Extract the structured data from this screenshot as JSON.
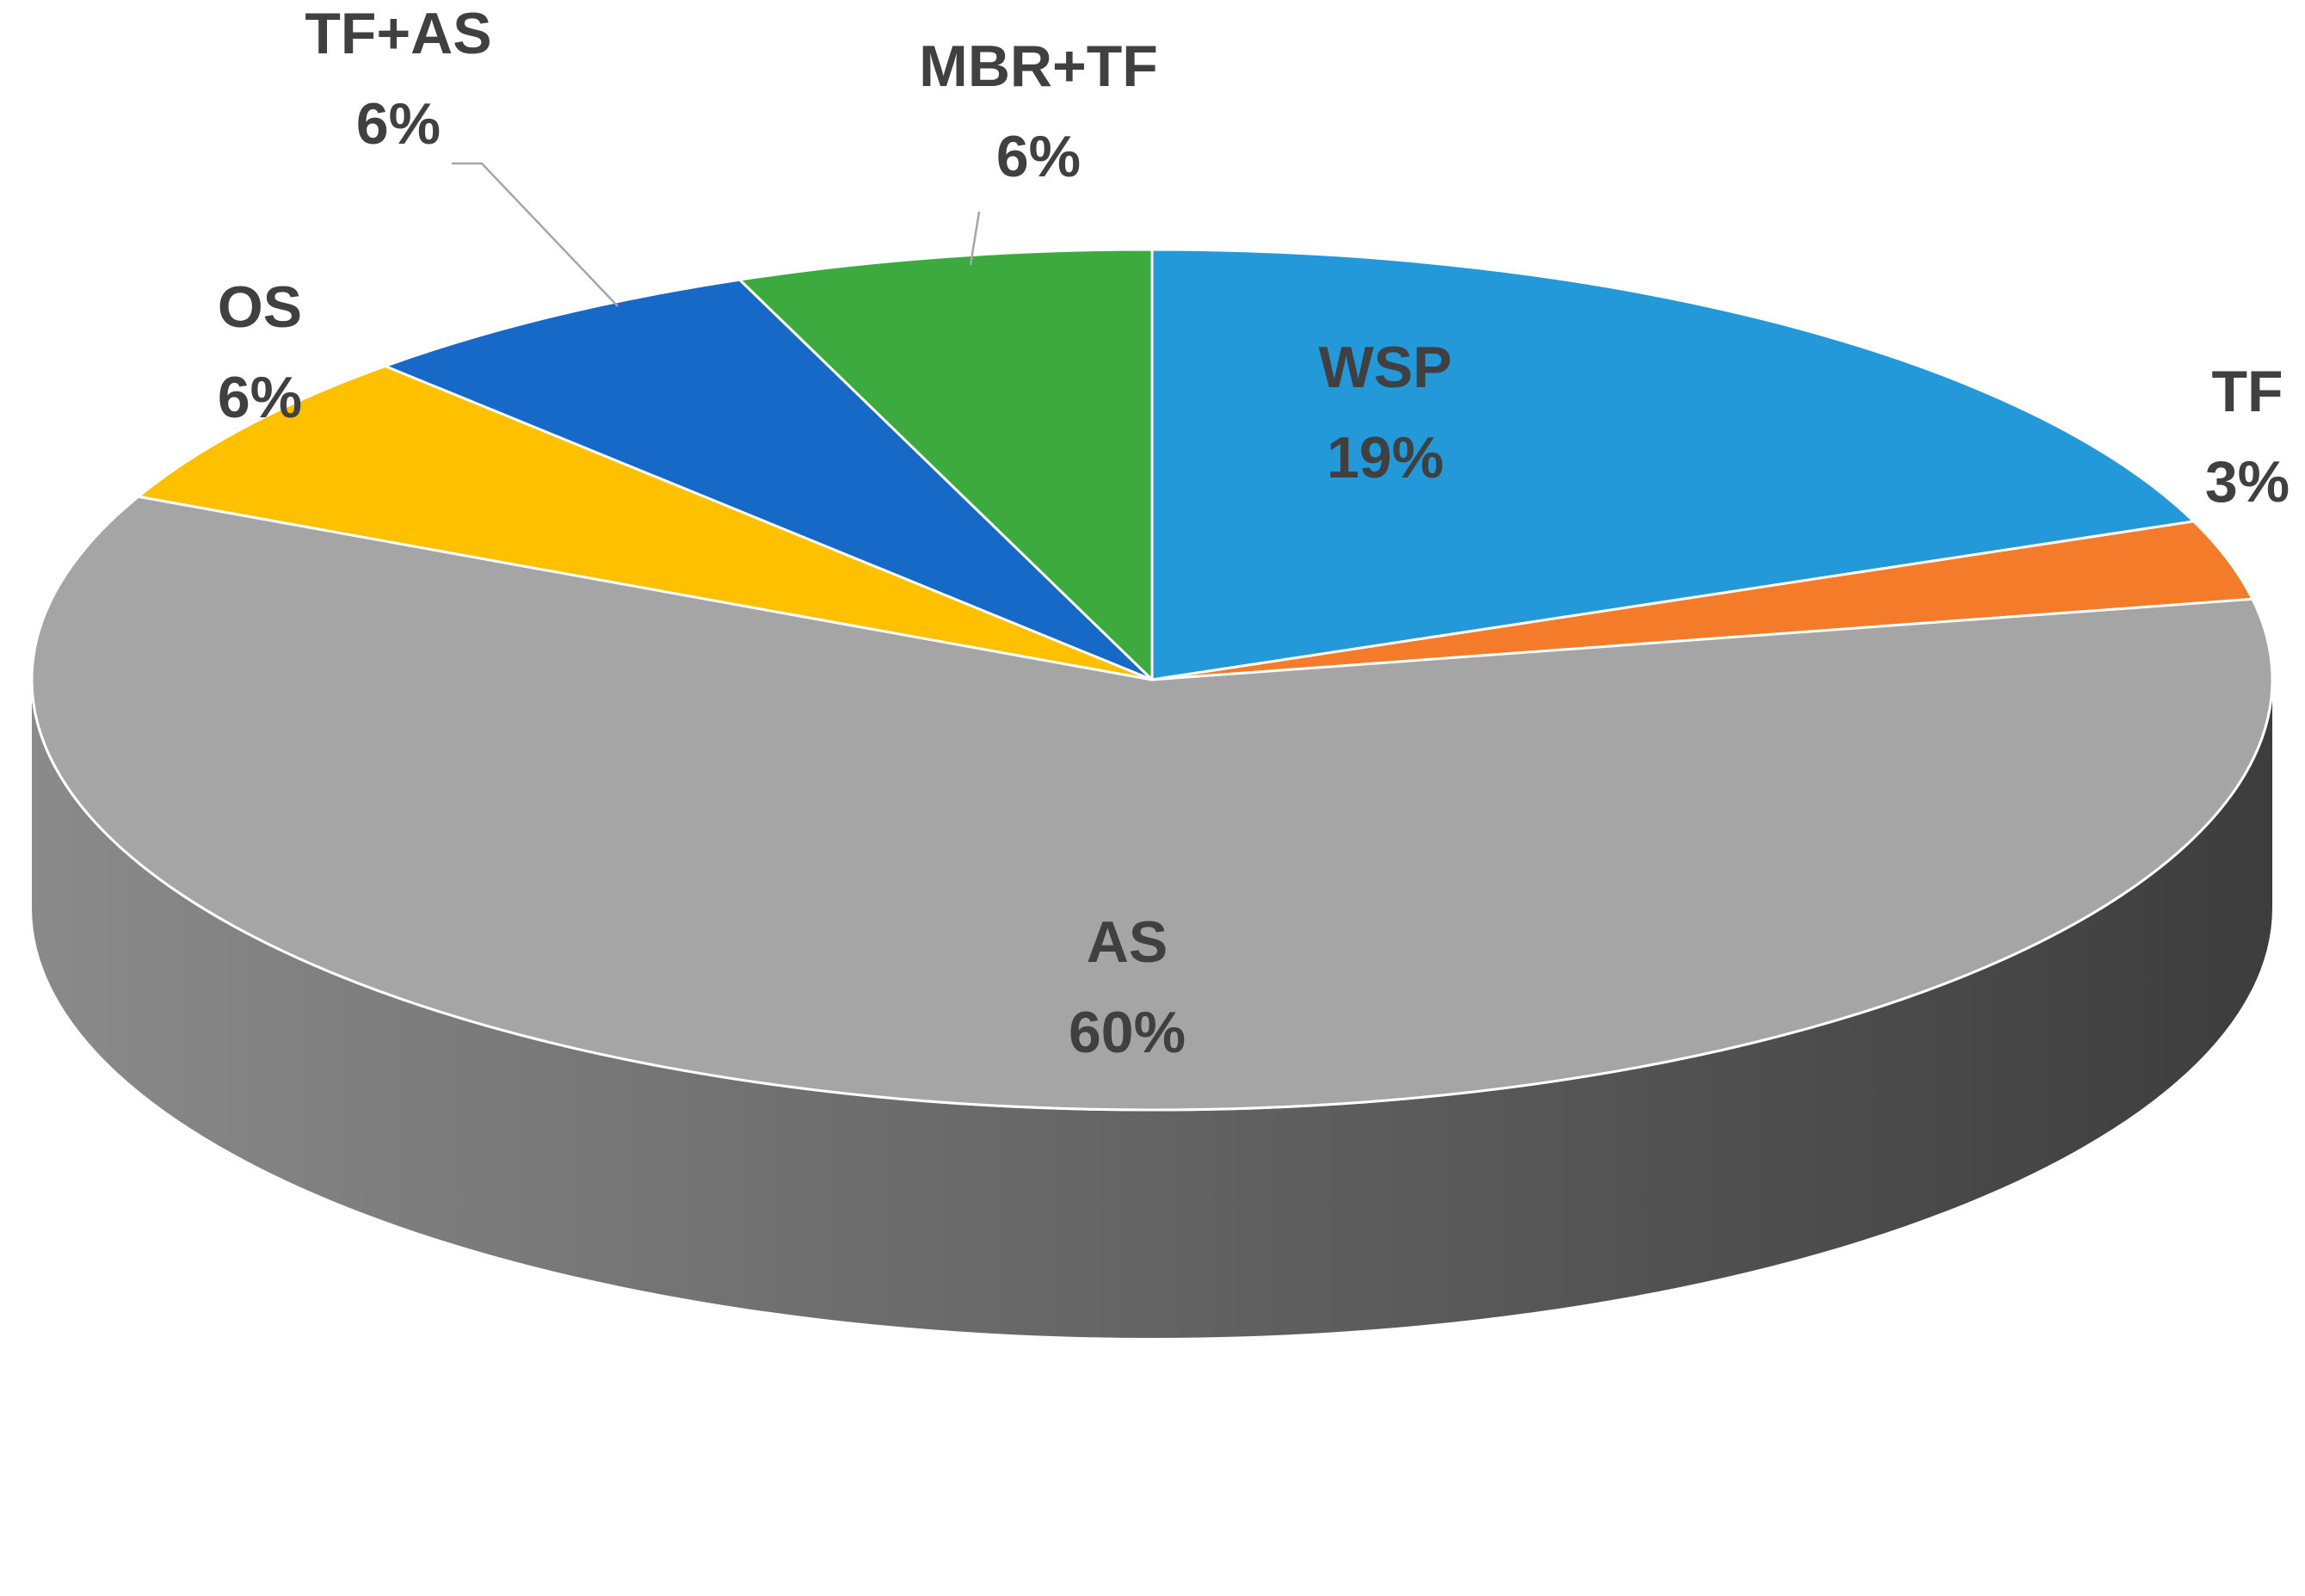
{
  "chart_data": {
    "type": "pie",
    "style": "3d",
    "slices": [
      {
        "label": "WSP",
        "value_label": "19%",
        "value": 19,
        "color": "#2399D9"
      },
      {
        "label": "TF",
        "value_label": "3%",
        "value": 3,
        "color": "#F47B2A"
      },
      {
        "label": "AS",
        "value_label": "60%",
        "value": 60,
        "color": "#A5A5A5"
      },
      {
        "label": "OS",
        "value_label": "6%",
        "value": 6,
        "color": "#FFC000"
      },
      {
        "label": "TF+AS",
        "value_label": "6%",
        "value": 6,
        "color": "#1769C8"
      },
      {
        "label": "MBR+TF",
        "value_label": "6%",
        "value": 6,
        "color": "#3DAA3F"
      }
    ],
    "side_colors": {
      "light": "#8a8a8a",
      "dark": "#3d3d3d"
    },
    "label_color": "#404040"
  }
}
